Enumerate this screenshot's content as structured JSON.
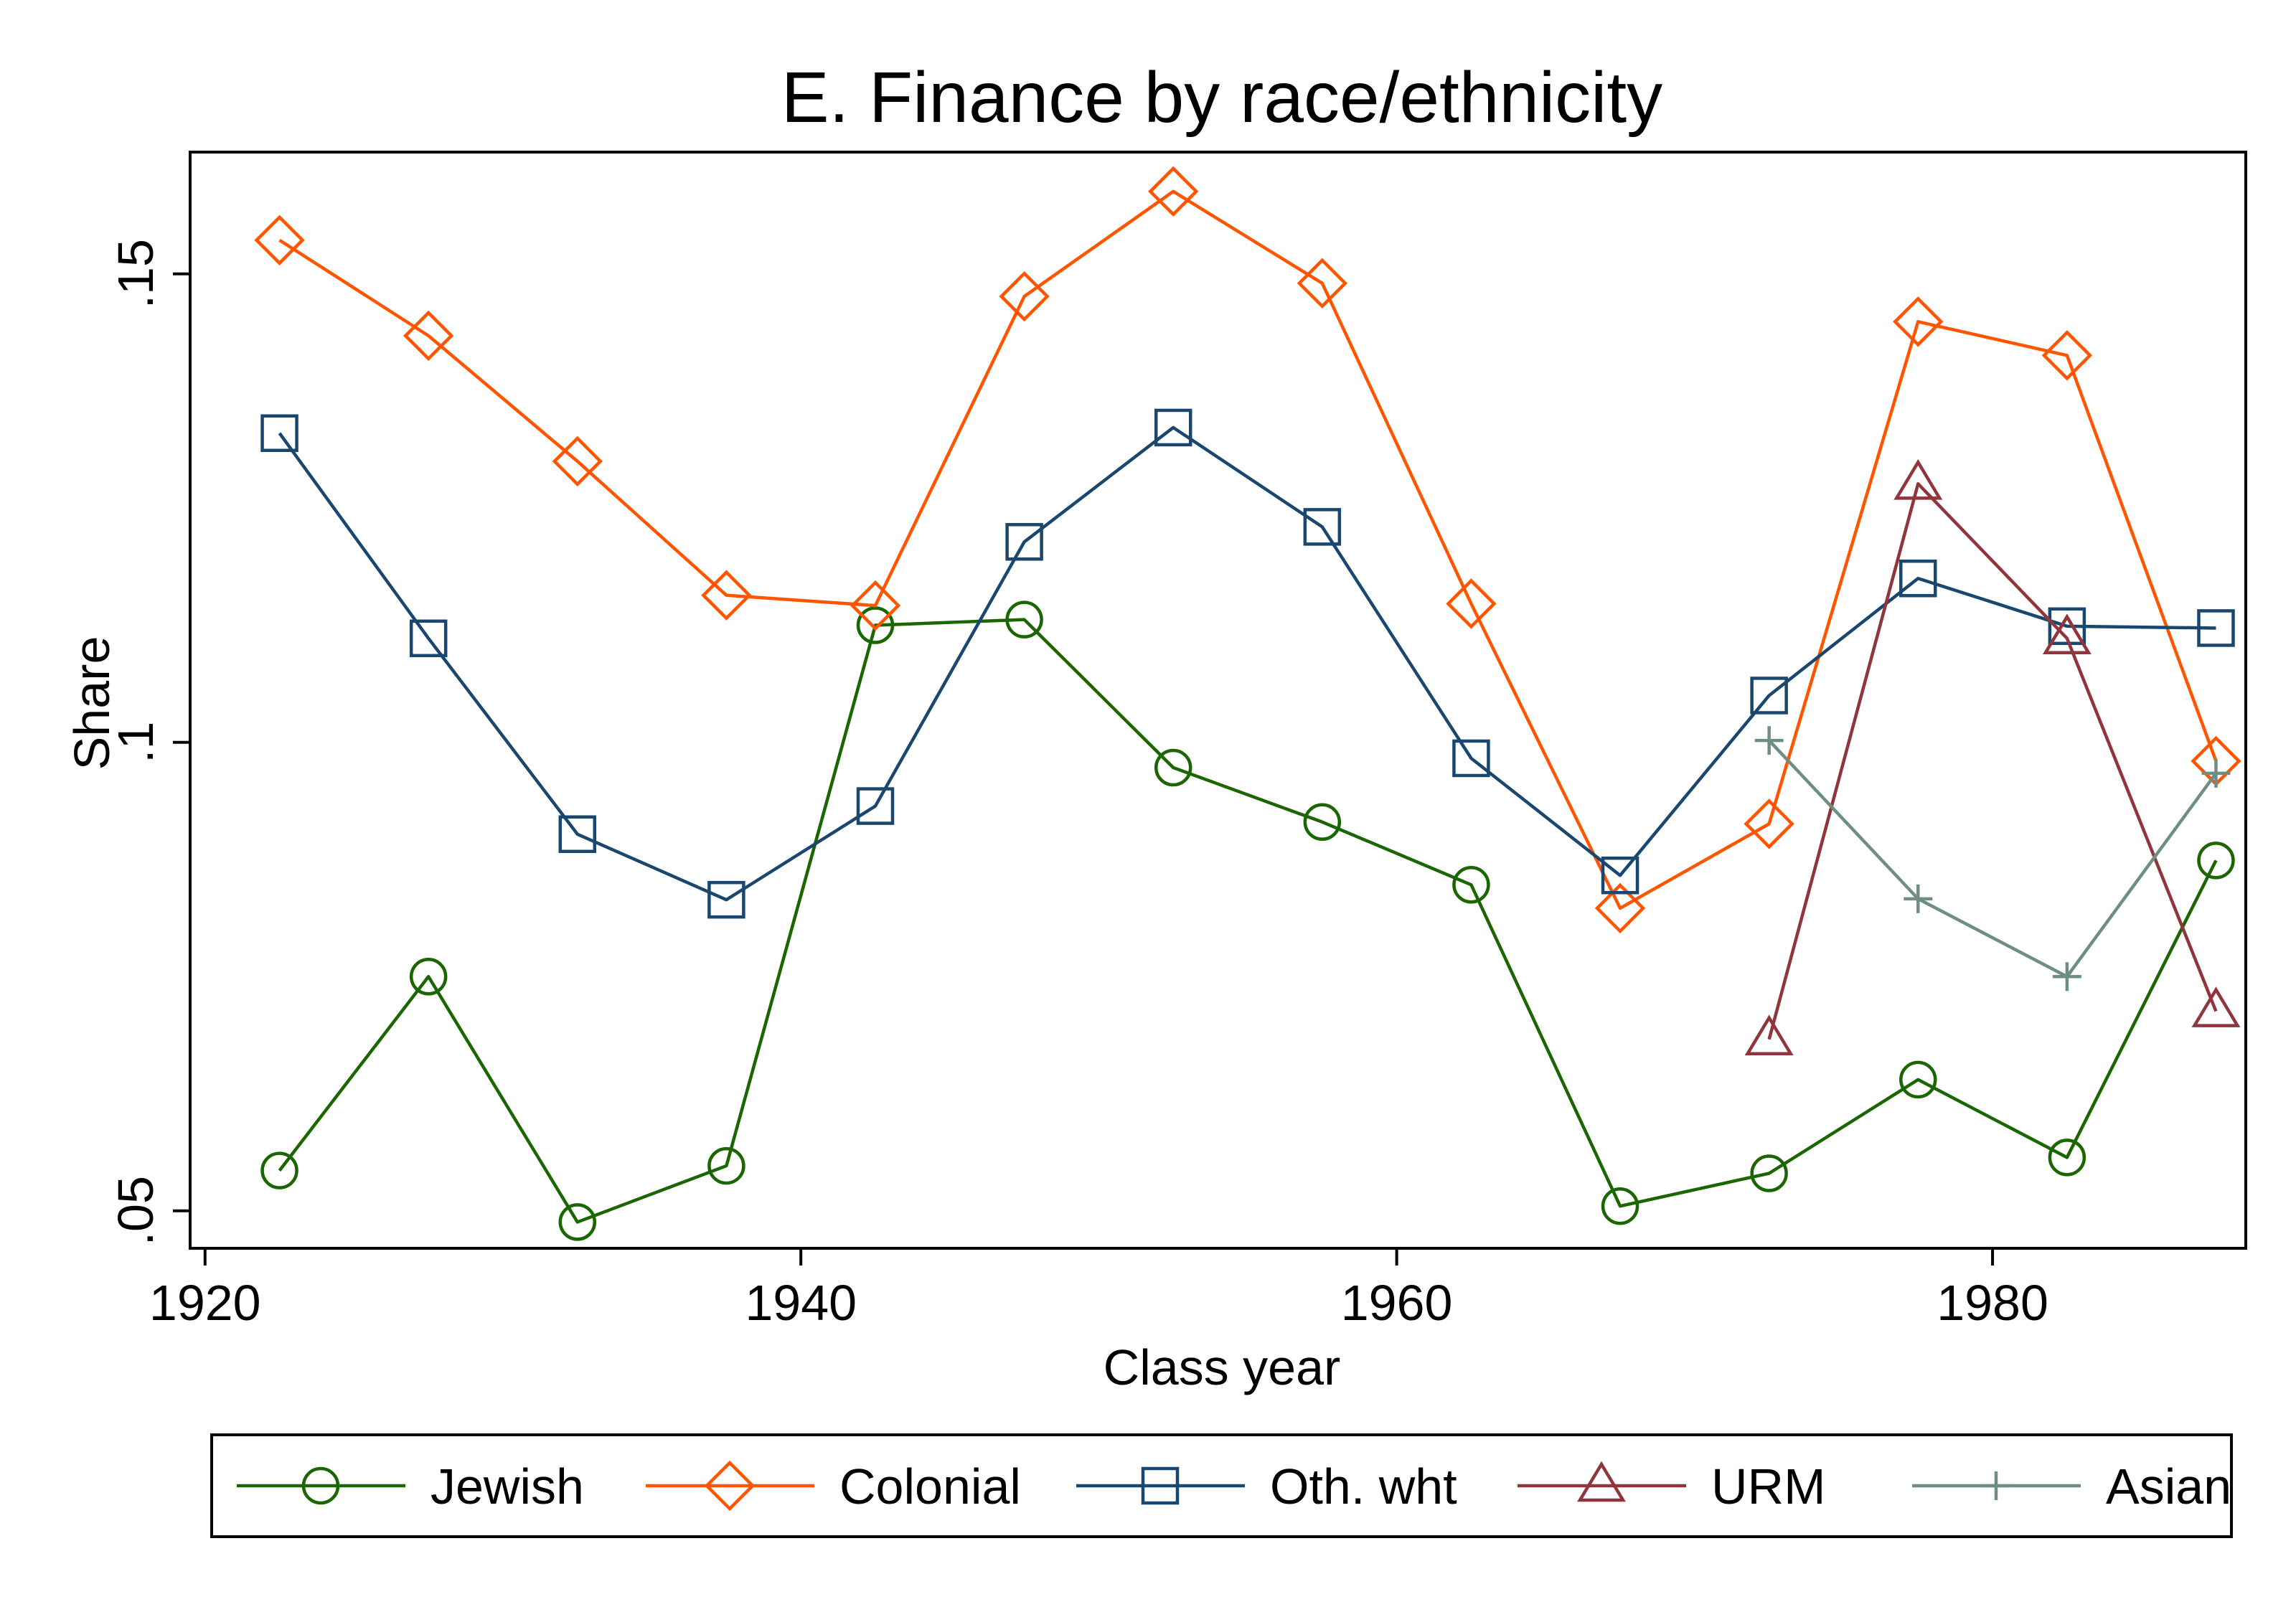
{
  "chart_data": {
    "type": "line",
    "title": "E. Finance by race/ethnicity",
    "xlabel": "Class year",
    "ylabel": "Share",
    "xlim": [
      1919.5,
      1988.5
    ],
    "ylim": [
      0.046,
      0.163
    ],
    "x_ticks": [
      1920,
      1940,
      1960,
      1980
    ],
    "x_tick_labels": [
      "1920",
      "1940",
      "1960",
      "1980"
    ],
    "y_ticks": [
      0.05,
      0.1,
      0.15
    ],
    "y_tick_labels": [
      ".05",
      ".1",
      ".15"
    ],
    "grid": false,
    "legend_position": "bottom",
    "series": [
      {
        "name": "Jewish",
        "color": "#1a6600",
        "marker": "circle",
        "x": [
          1922.5,
          1927.5,
          1932.5,
          1937.5,
          1942.5,
          1947.5,
          1952.5,
          1957.5,
          1962.5,
          1967.5,
          1972.5,
          1977.5,
          1982.5,
          1987.5
        ],
        "y": [
          0.0543,
          0.075,
          0.0488,
          0.0548,
          0.1125,
          0.1131,
          0.0973,
          0.0915,
          0.0848,
          0.0505,
          0.054,
          0.064,
          0.0557,
          0.0874
        ]
      },
      {
        "name": "Colonial",
        "color": "#ff5500",
        "marker": "diamond",
        "x": [
          1922.5,
          1927.5,
          1932.5,
          1937.5,
          1942.5,
          1947.5,
          1952.5,
          1957.5,
          1962.5,
          1967.5,
          1972.5,
          1977.5,
          1982.5,
          1987.5
        ],
        "y": [
          0.1536,
          0.1434,
          0.13,
          0.1157,
          0.1146,
          0.1476,
          0.1588,
          0.149,
          0.1148,
          0.0823,
          0.0913,
          0.1449,
          0.1413,
          0.098
        ]
      },
      {
        "name": "Oth. wht",
        "color": "#1a476f",
        "marker": "square",
        "x": [
          1922.5,
          1927.5,
          1932.5,
          1937.5,
          1942.5,
          1947.5,
          1952.5,
          1957.5,
          1962.5,
          1967.5,
          1972.5,
          1977.5,
          1982.5,
          1987.5
        ],
        "y": [
          0.133,
          0.1111,
          0.0902,
          0.0832,
          0.0932,
          0.1214,
          0.1336,
          0.123,
          0.0983,
          0.0858,
          0.105,
          0.1175,
          0.1124,
          0.1122
        ]
      },
      {
        "name": "URM",
        "color": "#90353b",
        "marker": "triangle",
        "x": [
          1972.5,
          1977.5,
          1982.5,
          1987.5
        ],
        "y": [
          0.0683,
          0.1276,
          0.1111,
          0.0713
        ]
      },
      {
        "name": "Asian",
        "color": "#6e8e84",
        "marker": "plus",
        "x": [
          1972.5,
          1977.5,
          1982.5,
          1987.5
        ],
        "y": [
          0.1002,
          0.0833,
          0.075,
          0.0967
        ]
      }
    ]
  }
}
